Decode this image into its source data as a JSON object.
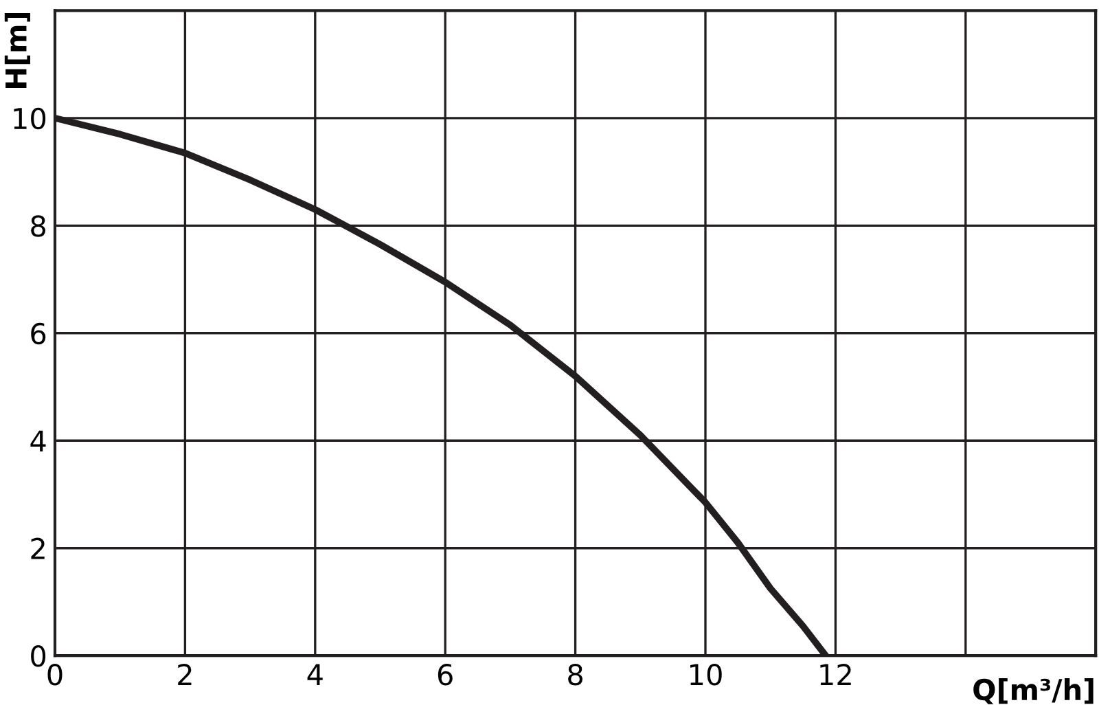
{
  "chart_data": {
    "type": "line",
    "xlabel": "Q[m³/h]",
    "ylabel": "H[m]",
    "x": [
      0,
      1,
      2,
      3,
      4,
      5,
      6,
      7,
      8,
      9,
      10,
      10.5,
      11,
      11.5,
      11.85
    ],
    "series": [
      {
        "color": "#231f20",
        "values": [
          10,
          9.7,
          9.35,
          8.85,
          8.3,
          7.65,
          6.95,
          6.15,
          5.2,
          4.1,
          2.85,
          2.1,
          1.25,
          0.55,
          0
        ]
      }
    ],
    "xlim": [
      0,
      16
    ],
    "ylim": [
      0,
      12
    ],
    "xticks": [
      0,
      2,
      4,
      6,
      8,
      10,
      12,
      {
        "value": 14,
        "label": null
      },
      {
        "value": 16,
        "label": null
      }
    ],
    "yticks": [
      0,
      2,
      4,
      6,
      8,
      10,
      {
        "value": 12,
        "label": null
      }
    ],
    "grid": true,
    "marker": "none",
    "line_style": "solid"
  }
}
